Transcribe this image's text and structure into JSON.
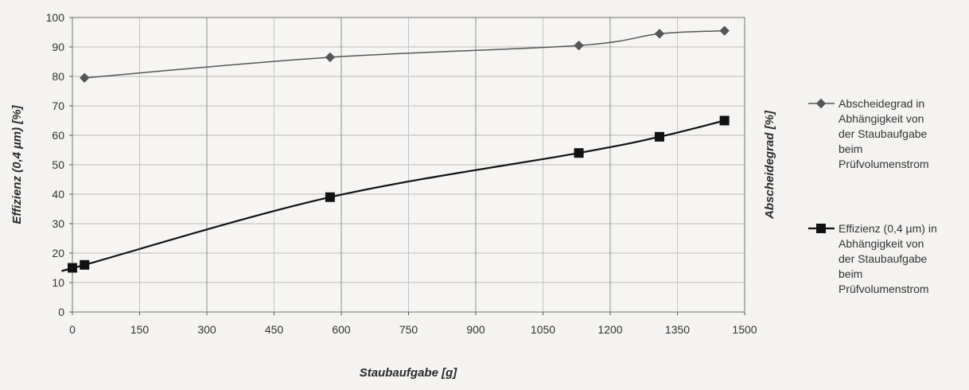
{
  "chart_data": {
    "type": "line",
    "xlabel": "Staubaufgabe [g]",
    "ylabel": "Effizienz (0,4 µm) [%]",
    "ylabel_right": "Abscheidegrad [%]",
    "xlim": [
      0,
      1500
    ],
    "ylim": [
      0,
      100
    ],
    "x_ticks": [
      "0",
      "150",
      "300",
      "450",
      "600",
      "750",
      "900",
      "1050",
      "1200",
      "1350",
      "1500"
    ],
    "y_ticks": [
      "0",
      "10",
      "20",
      "30",
      "40",
      "50",
      "60",
      "70",
      "80",
      "90",
      "100"
    ],
    "grid": true,
    "legend_position": "right",
    "series": [
      {
        "name": "Abscheidegrad in Abhängigkeit von der Staubaufgabe beim Prüfvolumenstrom",
        "legend_lines": [
          "Abscheidegrad in",
          "Abhängigkeit von",
          "der Staubaufgabe",
          "beim",
          "Prüfvolumenstrom"
        ],
        "marker": "diamond",
        "color": "#555555",
        "x": [
          27,
          575,
          1130,
          1310,
          1455
        ],
        "y": [
          79.5,
          86.5,
          90.5,
          94.5,
          95.5
        ]
      },
      {
        "name": "Effizienz (0,4 µm) in Abhängigkeit von der Staubaufgabe beim Prüfvolumenstrom",
        "legend_lines": [
          "Effizienz (0,4 µm) in",
          "Abhängigkeit von",
          "der Staubaufgabe",
          "beim",
          "Prüfvolumenstrom"
        ],
        "marker": "square",
        "color": "#111111",
        "x": [
          0,
          27,
          575,
          1130,
          1310,
          1455
        ],
        "y": [
          15,
          16,
          39,
          54,
          59.5,
          65
        ]
      }
    ]
  }
}
